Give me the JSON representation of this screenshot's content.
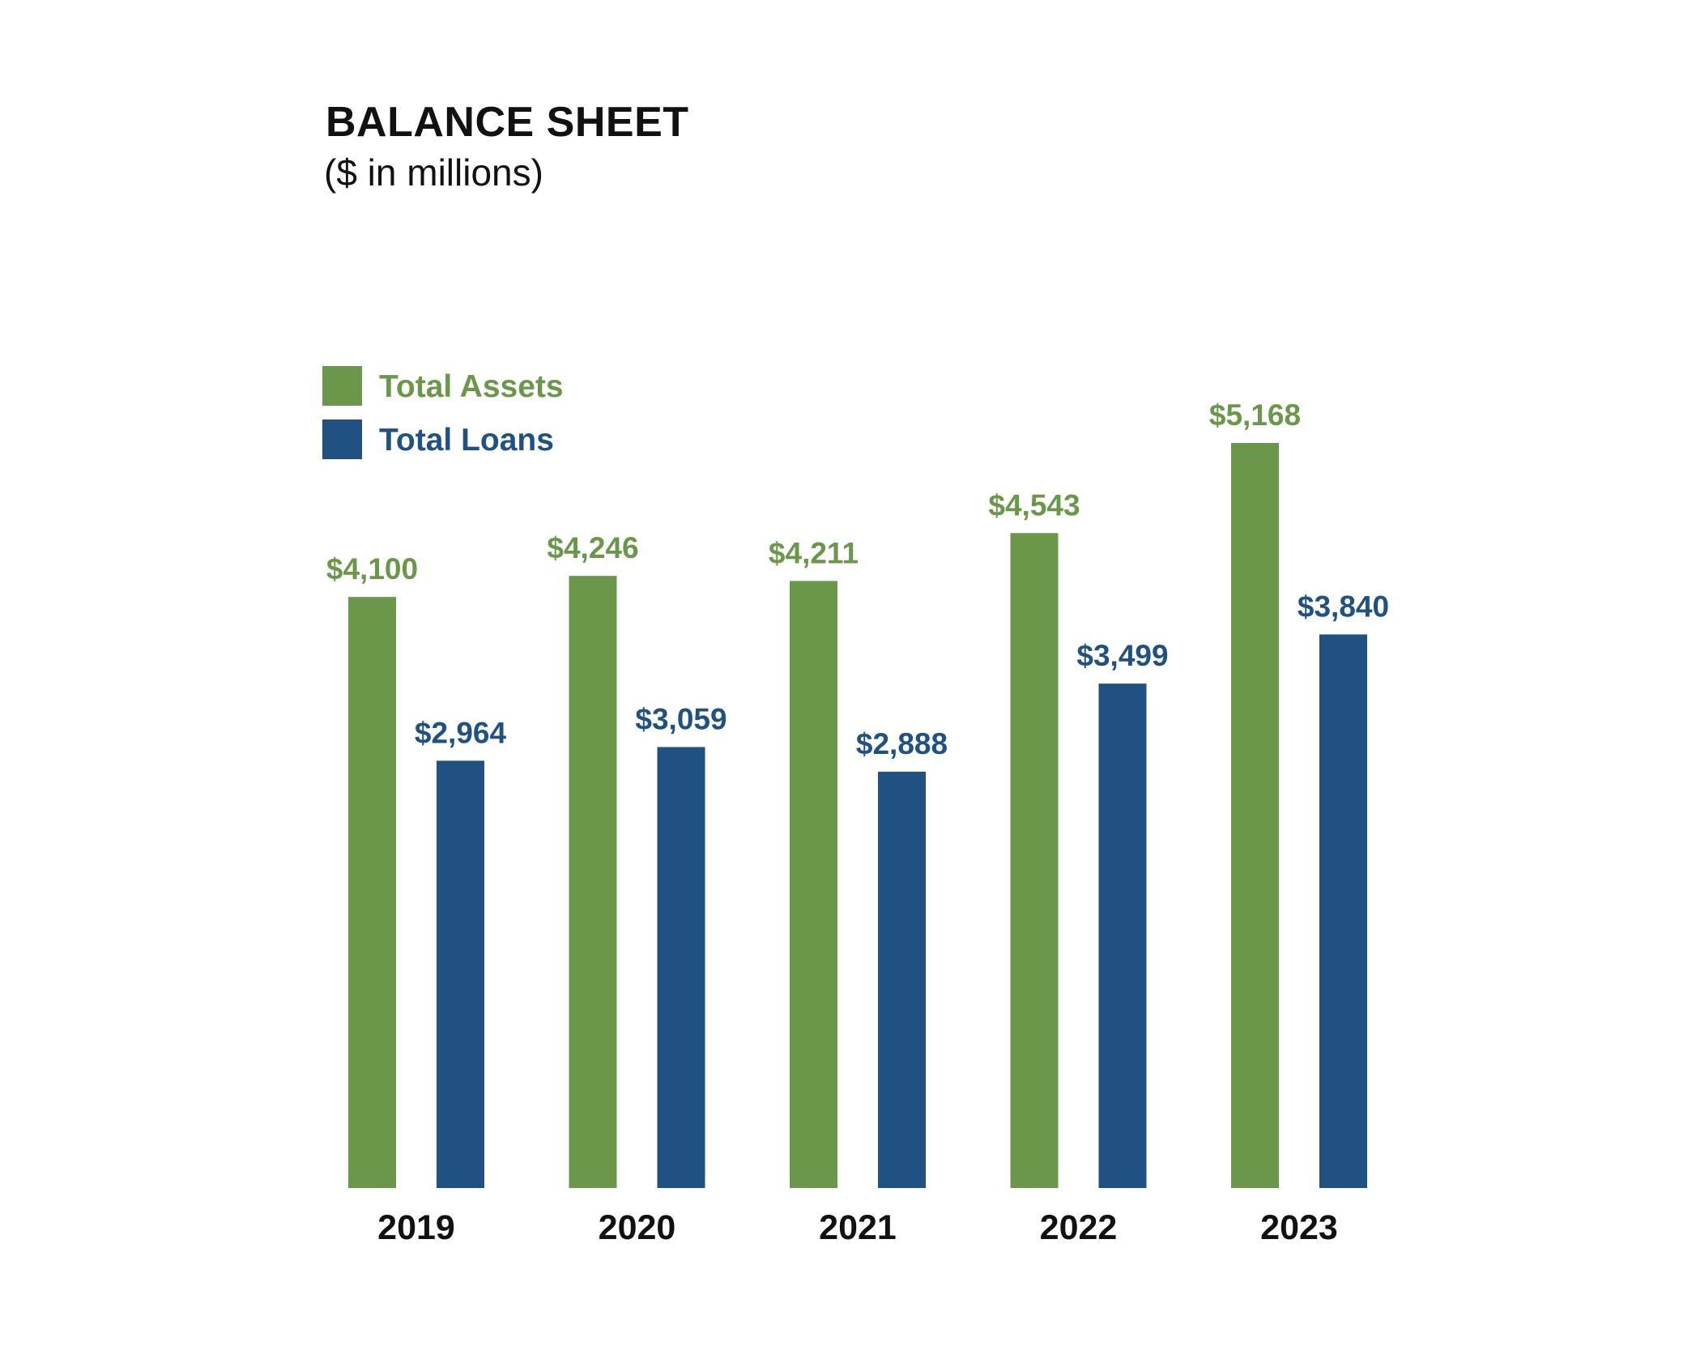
{
  "chart_data": {
    "type": "bar",
    "title": "BALANCE SHEET",
    "subtitle": "($ in millions)",
    "categories": [
      "2019",
      "2020",
      "2021",
      "2022",
      "2023"
    ],
    "series": [
      {
        "name": "Total Assets",
        "color": "#6b974b",
        "values": [
          4100,
          4246,
          4211,
          4543,
          5168
        ],
        "labels": [
          "$4,100",
          "$4,246",
          "$4,211",
          "$4,543",
          "$5,168"
        ]
      },
      {
        "name": "Total Loans",
        "color": "#1f5282",
        "values": [
          2964,
          3059,
          2888,
          3499,
          3840
        ],
        "labels": [
          "$2,964",
          "$3,059",
          "$2,888",
          "$3,499",
          "$3,840"
        ]
      }
    ],
    "ylim": [
      0,
      5168
    ],
    "grid": false,
    "legend": "top-left"
  }
}
